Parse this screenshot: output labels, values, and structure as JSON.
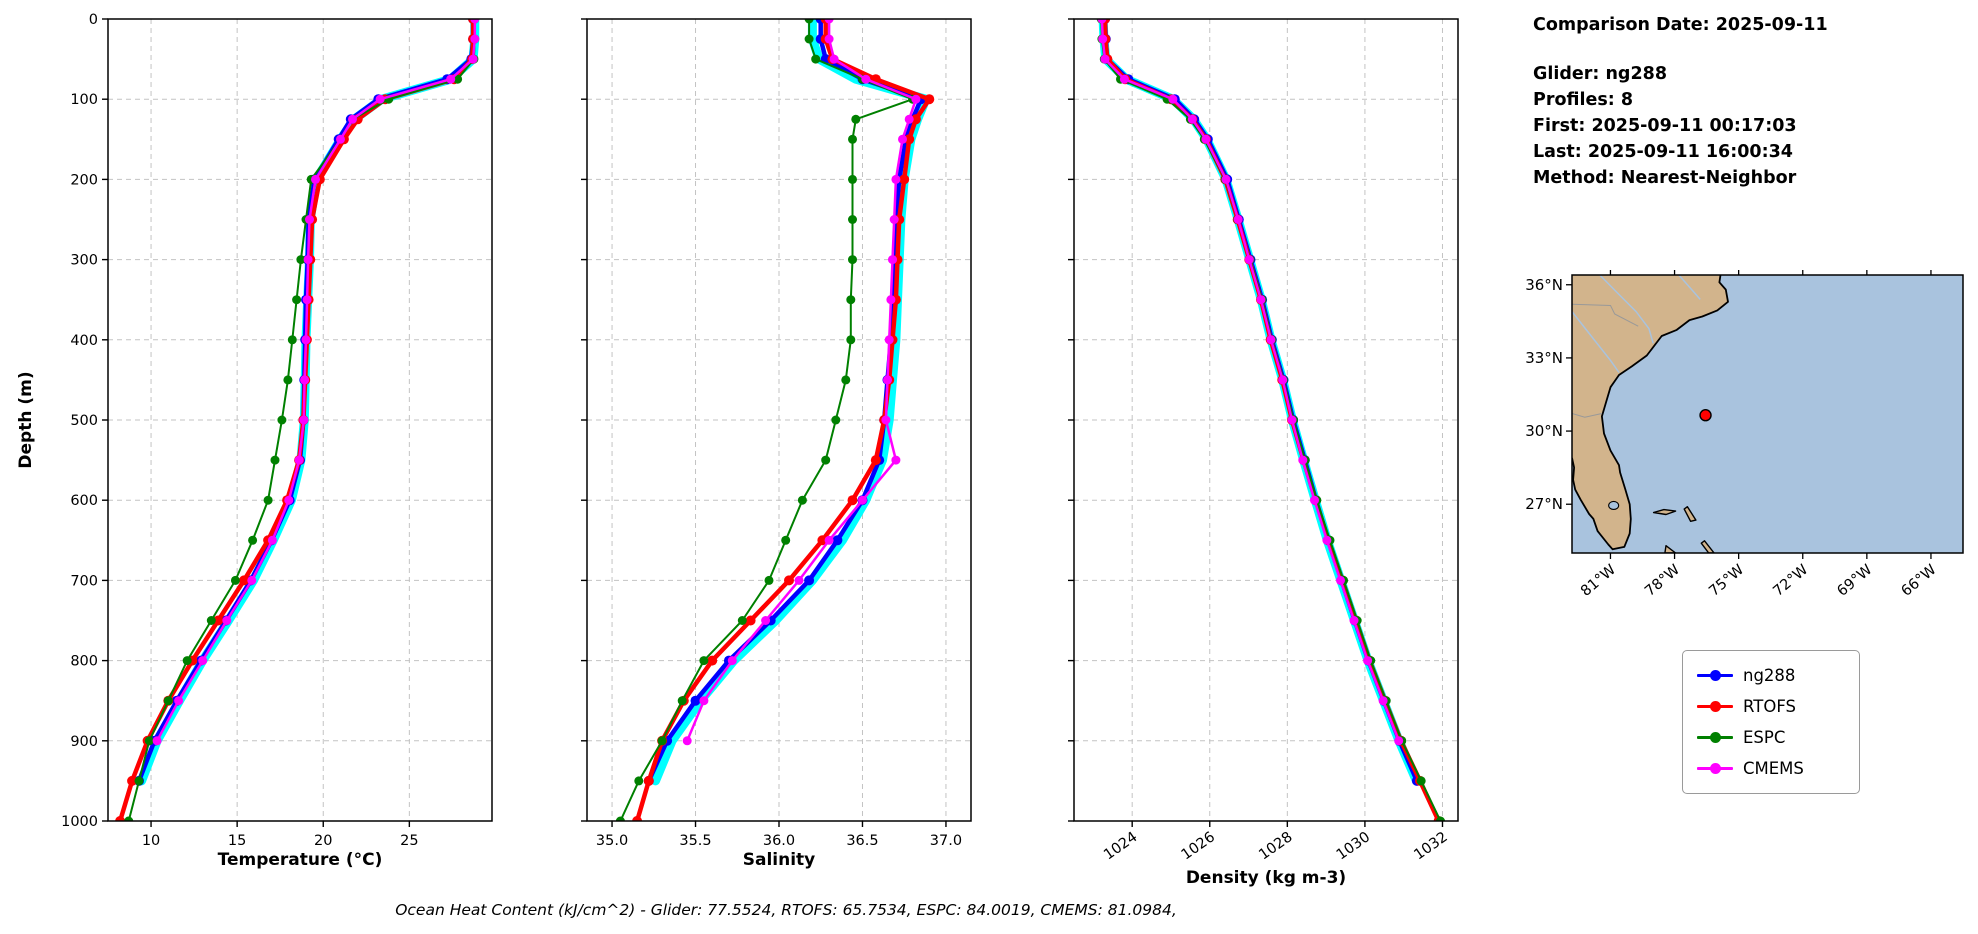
{
  "info": {
    "comparison_date": "Comparison Date: 2025-09-11",
    "glider": "Glider: ng288",
    "profiles": "Profiles: 8",
    "first": "First: 2025-09-11 00:17:03",
    "last": "Last: 2025-09-11 16:00:34",
    "method": "Method: Nearest-Neighbor"
  },
  "caption": "Ocean Heat Content (kJ/cm^2) - Glider: 77.5524,  RTOFS: 65.7534,  ESPC: 84.0019,  CMEMS: 81.0984,",
  "legend": {
    "items": [
      {
        "label": "ng288",
        "color": "#0000ff"
      },
      {
        "label": "RTOFS",
        "color": "#ff0000"
      },
      {
        "label": "ESPC",
        "color": "#008000"
      },
      {
        "label": "CMEMS",
        "color": "#ff00ff"
      }
    ]
  },
  "chart_data": {
    "type": "line",
    "title": "",
    "ylabel": "Depth (m)",
    "ylim": [
      0,
      1000
    ],
    "yticks": [
      0,
      100,
      200,
      300,
      400,
      500,
      600,
      700,
      800,
      900,
      1000
    ],
    "grid": true,
    "panels": [
      {
        "id": "temperature",
        "xlabel": "Temperature (°C)",
        "field": "temperature",
        "xlim": [
          7.5,
          29.8
        ],
        "xticks": [
          10,
          15,
          20,
          25
        ],
        "xtick_labels": [
          "10",
          "15",
          "20",
          "25"
        ],
        "xtick_rotation": 0
      },
      {
        "id": "salinity",
        "xlabel": "Salinity",
        "field": "salinity",
        "xlim": [
          34.85,
          37.15
        ],
        "xticks": [
          35.0,
          35.5,
          36.0,
          36.5,
          37.0
        ],
        "xtick_labels": [
          "35.0",
          "35.5",
          "36.0",
          "36.5",
          "37.0"
        ],
        "xtick_rotation": 0
      },
      {
        "id": "density",
        "xlabel": "Density (kg m-3)",
        "field": "density",
        "xlim": [
          1022.5,
          1032.4
        ],
        "xticks": [
          1024,
          1026,
          1028,
          1030,
          1032
        ],
        "xtick_labels": [
          "1024",
          "1026",
          "1028",
          "1030",
          "1032"
        ],
        "xtick_rotation": -35
      }
    ],
    "series": [
      {
        "name": "glider-profiles",
        "color": "#00ffff",
        "in_legend": false,
        "depths": [
          0,
          25,
          50,
          75,
          100,
          125,
          150,
          200,
          250,
          300,
          350,
          400,
          450,
          500,
          550,
          600,
          650,
          700,
          750,
          800,
          850,
          900,
          950
        ],
        "temperature": [
          28.8,
          28.8,
          28.7,
          27.4,
          23.4,
          21.8,
          21.0,
          19.6,
          19.25,
          19.2,
          19.1,
          19.0,
          18.95,
          18.9,
          18.7,
          18.15,
          17.1,
          15.95,
          14.5,
          13.0,
          11.65,
          10.35,
          9.45
        ],
        "salinity": [
          36.2,
          36.2,
          36.24,
          36.46,
          36.88,
          36.83,
          36.79,
          36.75,
          36.73,
          36.72,
          36.71,
          36.7,
          36.68,
          36.66,
          36.62,
          36.52,
          36.38,
          36.2,
          35.98,
          35.73,
          35.53,
          35.36,
          35.26
        ],
        "density": [
          1023.25,
          1023.27,
          1023.32,
          1023.85,
          1025.05,
          1025.58,
          1025.92,
          1026.42,
          1026.73,
          1027.03,
          1027.33,
          1027.58,
          1027.88,
          1028.13,
          1028.42,
          1028.72,
          1029.03,
          1029.38,
          1029.73,
          1030.08,
          1030.48,
          1030.88,
          1031.33
        ]
      },
      {
        "name": "ng288",
        "color": "#0000ff",
        "in_legend": true,
        "depths": [
          0,
          25,
          50,
          75,
          100,
          125,
          150,
          200,
          250,
          300,
          350,
          400,
          450,
          500,
          550,
          600,
          650,
          700,
          750,
          800,
          850,
          900,
          950
        ],
        "temperature": [
          28.7,
          28.7,
          28.6,
          27.2,
          23.2,
          21.6,
          20.9,
          19.5,
          19.15,
          19.1,
          19.0,
          18.95,
          18.9,
          18.85,
          18.65,
          18.05,
          17.0,
          15.8,
          14.35,
          12.9,
          11.5,
          10.2,
          9.3
        ],
        "salinity": [
          36.25,
          36.25,
          36.28,
          36.5,
          36.85,
          36.8,
          36.76,
          36.72,
          36.7,
          36.7,
          36.68,
          36.67,
          36.65,
          36.63,
          36.6,
          36.5,
          36.35,
          36.18,
          35.95,
          35.7,
          35.5,
          35.33,
          35.22
        ],
        "density": [
          1023.3,
          1023.32,
          1023.35,
          1023.9,
          1025.1,
          1025.6,
          1025.95,
          1026.45,
          1026.75,
          1027.05,
          1027.35,
          1027.6,
          1027.9,
          1028.15,
          1028.45,
          1028.74,
          1029.05,
          1029.4,
          1029.74,
          1030.09,
          1030.49,
          1030.89,
          1031.34
        ]
      },
      {
        "name": "RTOFS",
        "color": "#ff0000",
        "in_legend": true,
        "depths": [
          0,
          25,
          50,
          75,
          100,
          125,
          150,
          200,
          250,
          300,
          350,
          400,
          450,
          500,
          550,
          600,
          650,
          700,
          750,
          800,
          850,
          900,
          950,
          1000
        ],
        "temperature": [
          28.7,
          28.7,
          28.65,
          27.6,
          23.6,
          22.0,
          21.2,
          19.8,
          19.35,
          19.25,
          19.15,
          19.05,
          18.95,
          18.85,
          18.6,
          17.9,
          16.8,
          15.4,
          13.9,
          12.4,
          11.0,
          9.8,
          8.9,
          8.2
        ],
        "salinity": [
          36.28,
          36.28,
          36.32,
          36.58,
          36.9,
          36.82,
          36.78,
          36.75,
          36.72,
          36.71,
          36.7,
          36.68,
          36.66,
          36.63,
          36.58,
          36.44,
          36.26,
          36.06,
          35.83,
          35.6,
          35.43,
          35.3,
          35.22,
          35.15
        ],
        "density": [
          1023.3,
          1023.31,
          1023.36,
          1023.82,
          1025.0,
          1025.55,
          1025.9,
          1026.4,
          1026.72,
          1027.02,
          1027.32,
          1027.57,
          1027.87,
          1028.12,
          1028.42,
          1028.73,
          1029.06,
          1029.42,
          1029.77,
          1030.12,
          1030.52,
          1030.93,
          1031.42,
          1031.9
        ]
      },
      {
        "name": "ESPC",
        "color": "#008000",
        "in_legend": true,
        "depths": [
          0,
          25,
          50,
          75,
          100,
          125,
          150,
          200,
          250,
          300,
          350,
          400,
          450,
          500,
          550,
          600,
          650,
          700,
          750,
          800,
          850,
          900,
          950,
          1000
        ],
        "temperature": [
          28.8,
          28.8,
          28.75,
          27.8,
          23.8,
          21.7,
          21.0,
          19.3,
          19.0,
          18.7,
          18.45,
          18.2,
          17.95,
          17.6,
          17.2,
          16.8,
          15.9,
          14.9,
          13.5,
          12.1,
          11.0,
          9.9,
          9.3,
          8.7
        ],
        "salinity": [
          36.18,
          36.18,
          36.22,
          36.5,
          36.8,
          36.46,
          36.44,
          36.44,
          36.44,
          36.44,
          36.43,
          36.43,
          36.4,
          36.34,
          36.28,
          36.14,
          36.04,
          35.94,
          35.78,
          35.55,
          35.42,
          35.3,
          35.16,
          35.05
        ],
        "density": [
          1023.2,
          1023.22,
          1023.28,
          1023.7,
          1024.9,
          1025.5,
          1025.86,
          1026.4,
          1026.72,
          1027.04,
          1027.35,
          1027.6,
          1027.9,
          1028.16,
          1028.46,
          1028.76,
          1029.1,
          1029.45,
          1029.8,
          1030.15,
          1030.55,
          1030.95,
          1031.45,
          1031.95
        ]
      },
      {
        "name": "CMEMS",
        "color": "#ff00ff",
        "in_legend": true,
        "depths": [
          0,
          25,
          50,
          75,
          100,
          125,
          150,
          200,
          250,
          300,
          350,
          400,
          450,
          500,
          550,
          600,
          650,
          700,
          750,
          800,
          850,
          900
        ],
        "temperature": [
          28.8,
          28.8,
          28.7,
          27.4,
          23.3,
          21.7,
          21.0,
          19.55,
          19.2,
          19.12,
          19.06,
          19.0,
          18.92,
          18.87,
          18.6,
          18.0,
          17.05,
          15.85,
          14.4,
          13.0,
          11.6,
          10.35
        ],
        "salinity": [
          36.3,
          36.3,
          36.33,
          36.52,
          36.82,
          36.78,
          36.74,
          36.7,
          36.69,
          36.68,
          36.67,
          36.66,
          36.65,
          36.64,
          36.7,
          36.5,
          36.3,
          36.12,
          35.92,
          35.72,
          35.55,
          35.45
        ],
        "density": [
          1023.22,
          1023.24,
          1023.3,
          1023.8,
          1025.05,
          1025.55,
          1025.9,
          1026.42,
          1026.73,
          1027.02,
          1027.32,
          1027.58,
          1027.88,
          1028.12,
          1028.4,
          1028.7,
          1029.02,
          1029.37,
          1029.72,
          1030.07,
          1030.47,
          1030.87
        ]
      }
    ]
  },
  "map": {
    "extent": {
      "lon_min": -82.8,
      "lon_max": -64.5,
      "lat_min": 25.0,
      "lat_max": 36.4
    },
    "land_color": "#d2b48c",
    "ocean_color": "#a9c3de",
    "border_color": "#999999",
    "xticks": [
      {
        "value": -81,
        "label": "81°W"
      },
      {
        "value": -78,
        "label": "78°W"
      },
      {
        "value": -75,
        "label": "75°W"
      },
      {
        "value": -72,
        "label": "72°W"
      },
      {
        "value": -69,
        "label": "69°W"
      },
      {
        "value": -66,
        "label": "66°W"
      }
    ],
    "yticks": [
      {
        "value": 36,
        "label": "36°N"
      },
      {
        "value": 33,
        "label": "33°N"
      },
      {
        "value": 30,
        "label": "30°N"
      },
      {
        "value": 27,
        "label": "27°N"
      }
    ],
    "marker": {
      "lon": -76.55,
      "lat": 30.65,
      "color": "#ff0000"
    },
    "land": [
      [
        -82.8,
        36.4
      ],
      [
        -75.85,
        36.4
      ],
      [
        -75.9,
        36.1
      ],
      [
        -75.6,
        35.8
      ],
      [
        -75.5,
        35.3
      ],
      [
        -76.0,
        34.95
      ],
      [
        -76.7,
        34.7
      ],
      [
        -77.3,
        34.55
      ],
      [
        -77.9,
        34.15
      ],
      [
        -78.6,
        33.9
      ],
      [
        -79.3,
        33.1
      ],
      [
        -80.0,
        32.65
      ],
      [
        -80.6,
        32.3
      ],
      [
        -81.0,
        31.8
      ],
      [
        -81.2,
        31.2
      ],
      [
        -81.4,
        30.6
      ],
      [
        -81.3,
        29.9
      ],
      [
        -81.0,
        29.2
      ],
      [
        -80.6,
        28.6
      ],
      [
        -80.55,
        28.3
      ],
      [
        -80.3,
        27.6
      ],
      [
        -80.1,
        27.0
      ],
      [
        -80.05,
        26.4
      ],
      [
        -80.1,
        25.8
      ],
      [
        -80.35,
        25.25
      ],
      [
        -80.9,
        25.15
      ],
      [
        -81.1,
        25.35
      ],
      [
        -81.6,
        25.9
      ],
      [
        -81.8,
        26.4
      ],
      [
        -82.0,
        26.6
      ],
      [
        -82.4,
        27.2
      ],
      [
        -82.65,
        27.6
      ],
      [
        -82.75,
        28.0
      ],
      [
        -82.7,
        28.5
      ],
      [
        -82.8,
        28.9
      ]
    ],
    "islands": [
      [
        [
          -78.98,
          26.66
        ],
        [
          -78.4,
          26.58
        ],
        [
          -77.95,
          26.72
        ],
        [
          -78.5,
          26.78
        ]
      ],
      [
        [
          -77.4,
          26.9
        ],
        [
          -77.0,
          26.35
        ],
        [
          -77.25,
          26.3
        ],
        [
          -77.55,
          26.8
        ]
      ],
      [
        [
          -78.4,
          25.3
        ],
        [
          -77.95,
          25.0
        ],
        [
          -78.45,
          25.0
        ]
      ],
      [
        [
          -76.6,
          25.5
        ],
        [
          -76.15,
          25.0
        ],
        [
          -76.4,
          25.0
        ],
        [
          -76.75,
          25.4
        ]
      ]
    ],
    "rivers": [
      [
        [
          -81.5,
          36.4
        ],
        [
          -80.6,
          35.6
        ],
        [
          -79.8,
          34.9
        ],
        [
          -79.2,
          34.2
        ],
        [
          -79.0,
          33.6
        ]
      ],
      [
        [
          -82.8,
          34.9
        ],
        [
          -81.9,
          33.9
        ],
        [
          -81.0,
          32.9
        ],
        [
          -80.6,
          32.4
        ]
      ],
      [
        [
          -77.8,
          36.4
        ],
        [
          -77.2,
          35.8
        ],
        [
          -76.8,
          35.4
        ]
      ]
    ],
    "borders": [
      [
        [
          -82.8,
          36.54
        ],
        [
          -75.9,
          36.54
        ]
      ],
      [
        [
          -82.8,
          35.2
        ],
        [
          -81.0,
          35.15
        ],
        [
          -80.8,
          34.8
        ],
        [
          -79.7,
          34.3
        ]
      ],
      [
        [
          -82.8,
          30.72
        ],
        [
          -82.2,
          30.57
        ],
        [
          -81.4,
          30.72
        ]
      ]
    ],
    "lake": {
      "lon": -80.85,
      "lat": 26.95
    }
  }
}
